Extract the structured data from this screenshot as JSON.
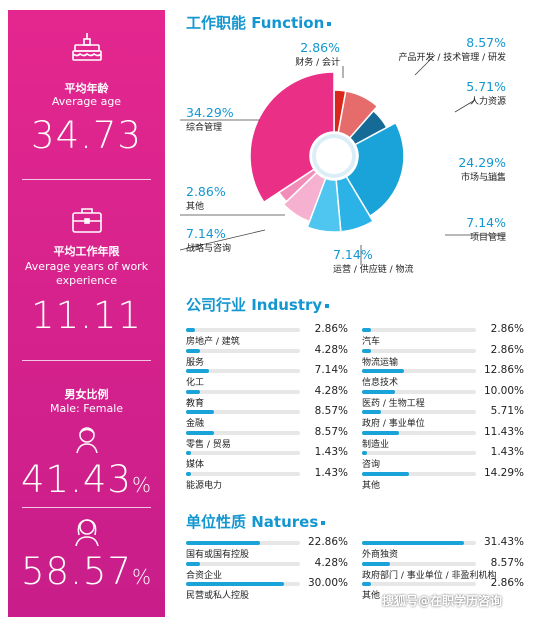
{
  "left_panel": {
    "age": {
      "label_cn": "平均年龄",
      "label_en": "Average age",
      "value": "34.73",
      "icon": "birthday-cake-icon"
    },
    "work": {
      "label_cn": "平均工作年限",
      "label_en": "Average years of work experience",
      "value": "11.11",
      "icon": "briefcase-icon"
    },
    "gender": {
      "label_cn": "男女比例",
      "label_en": "Male: Female",
      "male_value": "41.43",
      "female_value": "58.57",
      "pct": "%",
      "icons": [
        "male-avatar-icon",
        "female-avatar-icon"
      ]
    }
  },
  "colors": {
    "accent_blue": "#1497d1",
    "accent_pink": "#e4278f"
  },
  "chart_data": [
    {
      "type": "pie",
      "title": "工作职能 Function",
      "donut": true,
      "slices": [
        {
          "label": "财务 / 会计",
          "value": 2.86,
          "color": "#d9271c"
        },
        {
          "label": "产品开发 / 技术管理 / 研发",
          "value": 8.57,
          "color": "#e66b6b"
        },
        {
          "label": "人力资源",
          "value": 5.71,
          "color": "#156b96"
        },
        {
          "label": "市场与销售",
          "value": 24.29,
          "color": "#1aa3d9"
        },
        {
          "label": "项目管理",
          "value": 7.14,
          "color": "#2bb2e6"
        },
        {
          "label": "运营 / 供应链 / 物流",
          "value": 7.14,
          "color": "#4ec6f0"
        },
        {
          "label": "战略与咨询",
          "value": 7.14,
          "color": "#f5b1cf"
        },
        {
          "label": "其他",
          "value": 2.86,
          "color": "#f28cb9"
        },
        {
          "label": "综合管理",
          "value": 34.29,
          "color": "#e92f86"
        }
      ],
      "value_labels": [
        "2.86%",
        "8.57%",
        "5.71%",
        "24.29%",
        "7.14%",
        "7.14%",
        "7.14%",
        "2.86%",
        "34.29%"
      ]
    },
    {
      "type": "bar",
      "title": "公司行业 Industry",
      "orientation": "horizontal",
      "xlim": [
        0,
        35
      ],
      "columns": [
        {
          "categories": [
            "房地产 / 建筑",
            "服务",
            "化工",
            "教育",
            "金融",
            "零售 / 贸易",
            "媒体",
            "能源电力"
          ],
          "values": [
            2.86,
            4.28,
            7.14,
            4.28,
            8.57,
            8.57,
            1.43,
            1.43
          ],
          "value_labels": [
            "2.86%",
            "4.28%",
            "7.14%",
            "4.28%",
            "8.57%",
            "8.57%",
            "1.43%",
            "1.43%"
          ]
        },
        {
          "categories": [
            "汽车",
            "物流运输",
            "信息技术",
            "医药 / 生物工程",
            "政府 / 事业单位",
            "制造业",
            "咨询",
            "其他"
          ],
          "values": [
            2.86,
            2.86,
            12.86,
            10.0,
            5.71,
            11.43,
            1.43,
            14.29
          ],
          "value_labels": [
            "2.86%",
            "2.86%",
            "12.86%",
            "10.00%",
            "5.71%",
            "11.43%",
            "1.43%",
            "14.29%"
          ]
        }
      ]
    },
    {
      "type": "bar",
      "title": "单位性质 Natures",
      "orientation": "horizontal",
      "xlim": [
        0,
        35
      ],
      "columns": [
        {
          "categories": [
            "国有或国有控股",
            "合资企业",
            "民营或私人控股"
          ],
          "values": [
            22.86,
            4.28,
            30.0
          ],
          "value_labels": [
            "22.86%",
            "4.28%",
            "30.00%"
          ]
        },
        {
          "categories": [
            "外商独资",
            "政府部门 / 事业单位 / 非盈利机构",
            "其他"
          ],
          "values": [
            31.43,
            8.57,
            2.86
          ],
          "value_labels": [
            "31.43%",
            "8.57%",
            "2.86%"
          ]
        }
      ]
    }
  ],
  "watermark": "搜狐号@在职学历咨询"
}
